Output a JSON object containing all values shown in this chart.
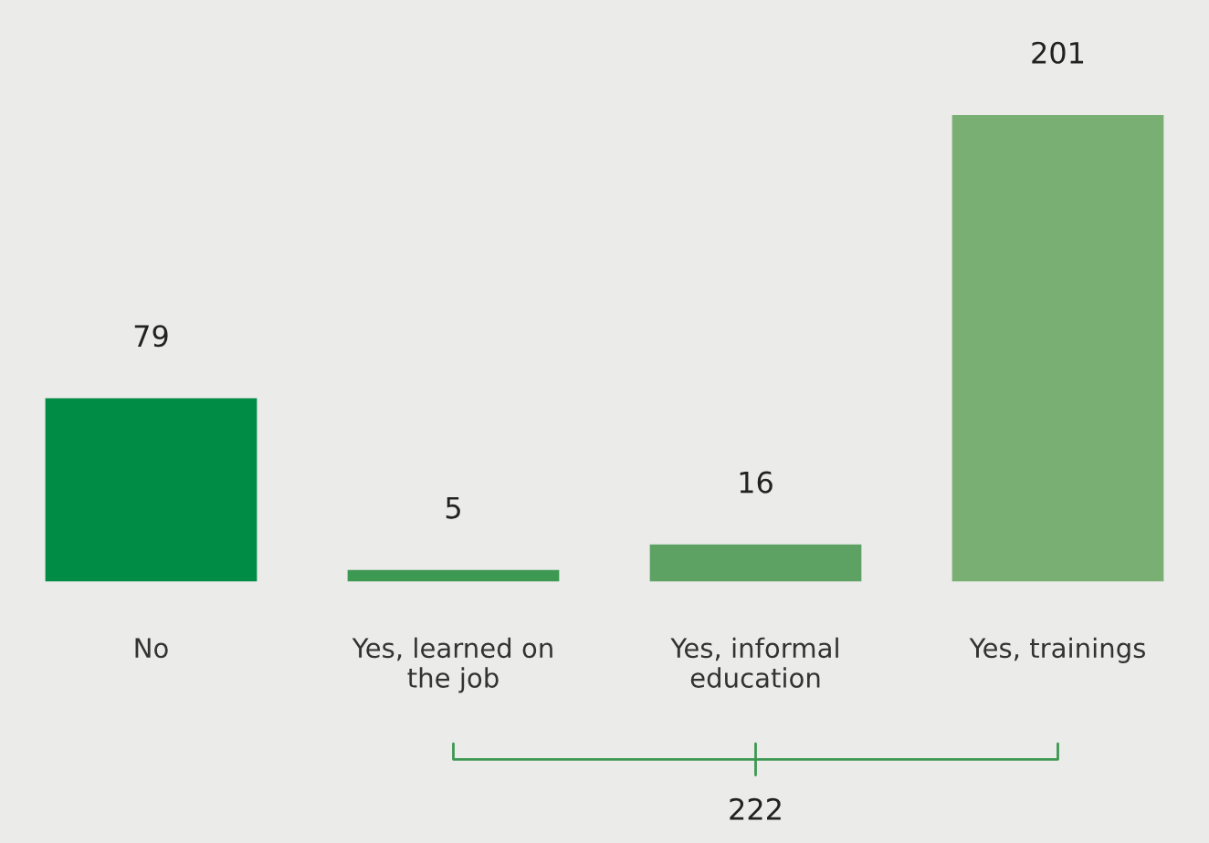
{
  "chart_data": {
    "type": "bar",
    "categories": [
      "No",
      "Yes, learned on\nthe job",
      "Yes, informal\neducation",
      "Yes, trainings"
    ],
    "values": [
      79,
      5,
      16,
      201
    ],
    "colors": [
      "#008c45",
      "#3d9851",
      "#5ea263",
      "#7aaf73"
    ],
    "data_labels": true,
    "annotations": [
      "222"
    ]
  }
}
